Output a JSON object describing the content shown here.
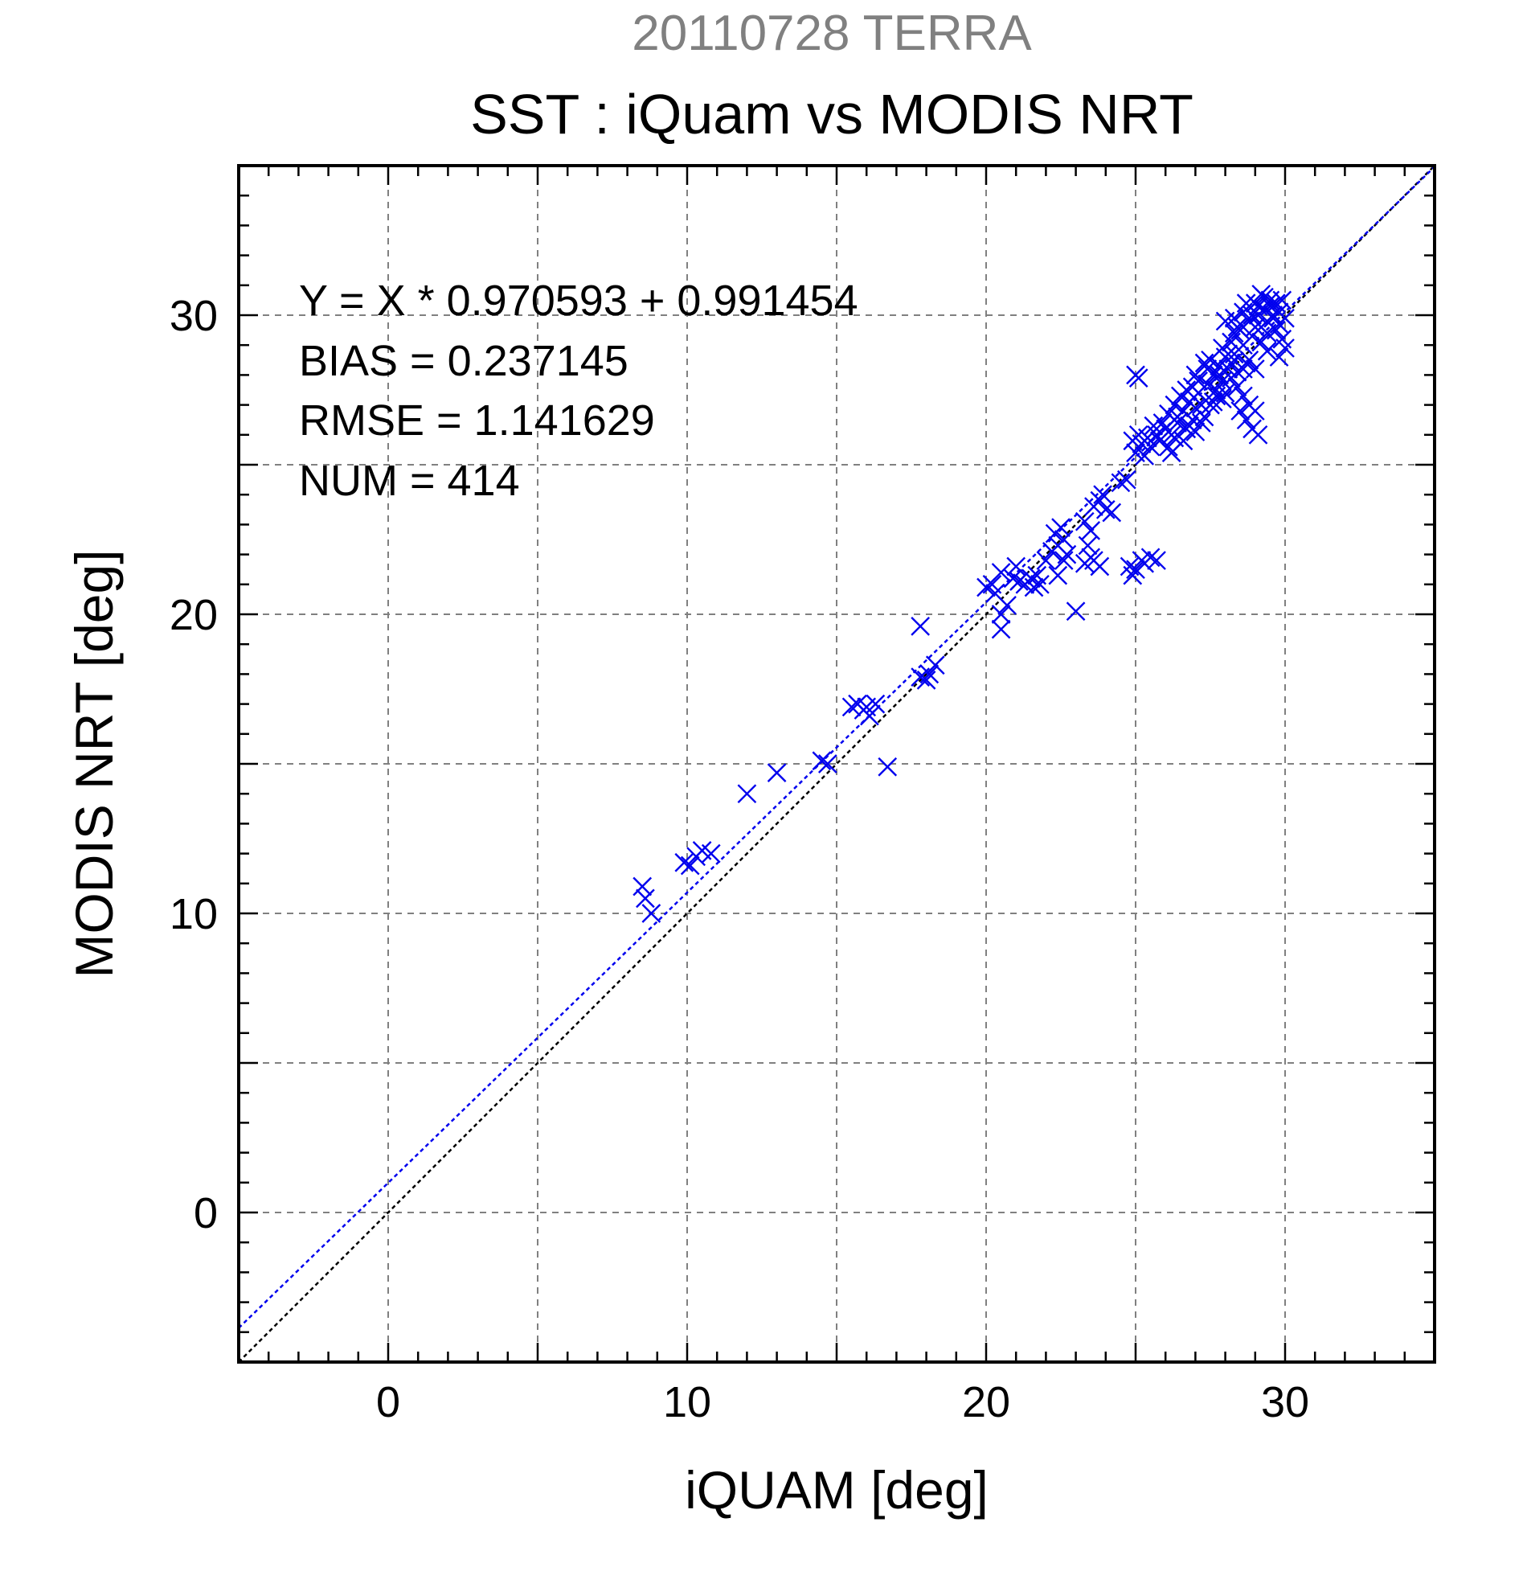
{
  "chart_data": {
    "type": "scatter",
    "supertitle": "20110728 TERRA",
    "title": "SST : iQuam vs MODIS NRT",
    "xlabel": "iQUAM [deg]",
    "ylabel": "MODIS NRT [deg]",
    "xlim": [
      -5,
      35
    ],
    "ylim": [
      -5,
      35
    ],
    "xticks": [
      0,
      10,
      20,
      30
    ],
    "yticks": [
      0,
      10,
      20,
      30
    ],
    "grid": true,
    "stats": [
      "Y = X * 0.970593 + 0.991454",
      "BIAS = 0.237145",
      "RMSE = 1.141629",
      "NUM = 414"
    ],
    "fit": {
      "slope": 0.970593,
      "intercept": 0.991454
    },
    "colors": {
      "points": "#0000ee",
      "fit_line": "#0000ee",
      "one_to_one_line": "#000000",
      "supertitle": "#808080",
      "grid": "#808080"
    },
    "series": [
      {
        "marker": "x",
        "points": [
          [
            8.5,
            10.9
          ],
          [
            8.6,
            10.5
          ],
          [
            8.8,
            10.0
          ],
          [
            9.9,
            11.7
          ],
          [
            10.1,
            11.6
          ],
          [
            10.3,
            11.9
          ],
          [
            10.5,
            12.1
          ],
          [
            10.8,
            12.0
          ],
          [
            12.0,
            14.0
          ],
          [
            13.0,
            14.7
          ],
          [
            14.5,
            15.1
          ],
          [
            14.7,
            15.0
          ],
          [
            15.5,
            16.9
          ],
          [
            15.7,
            17.0
          ],
          [
            15.9,
            16.8
          ],
          [
            16.0,
            16.9
          ],
          [
            16.1,
            16.6
          ],
          [
            16.3,
            17.0
          ],
          [
            16.7,
            14.9
          ],
          [
            17.8,
            19.6
          ],
          [
            17.8,
            17.9
          ],
          [
            18.0,
            17.8
          ],
          [
            18.1,
            18.0
          ],
          [
            18.3,
            18.3
          ],
          [
            20.0,
            20.9
          ],
          [
            20.2,
            21.0
          ],
          [
            20.3,
            20.7
          ],
          [
            20.5,
            21.4
          ],
          [
            20.5,
            20.0
          ],
          [
            20.5,
            19.5
          ],
          [
            20.7,
            20.3
          ],
          [
            20.9,
            21.2
          ],
          [
            21.0,
            21.6
          ],
          [
            21.1,
            21.1
          ],
          [
            21.3,
            21.0
          ],
          [
            21.5,
            21.2
          ],
          [
            21.6,
            20.9
          ],
          [
            21.7,
            21.3
          ],
          [
            21.8,
            21.0
          ],
          [
            22.0,
            21.8
          ],
          [
            22.2,
            22.1
          ],
          [
            22.3,
            22.7
          ],
          [
            22.4,
            22.3
          ],
          [
            22.5,
            22.9
          ],
          [
            22.6,
            22.5
          ],
          [
            22.4,
            21.3
          ],
          [
            22.6,
            21.8
          ],
          [
            22.7,
            22.0
          ],
          [
            23.0,
            20.1
          ],
          [
            23.3,
            21.7
          ],
          [
            23.4,
            22.3
          ],
          [
            23.5,
            21.9
          ],
          [
            23.6,
            21.8
          ],
          [
            23.8,
            21.6
          ],
          [
            23.3,
            23.1
          ],
          [
            23.5,
            22.8
          ],
          [
            23.6,
            23.6
          ],
          [
            23.8,
            23.8
          ],
          [
            23.9,
            24.0
          ],
          [
            24.0,
            23.5
          ],
          [
            24.2,
            23.4
          ],
          [
            24.5,
            24.4
          ],
          [
            24.7,
            24.5
          ],
          [
            24.8,
            21.6
          ],
          [
            24.9,
            21.3
          ],
          [
            25.0,
            21.5
          ],
          [
            25.2,
            21.8
          ],
          [
            25.3,
            21.7
          ],
          [
            25.5,
            21.9
          ],
          [
            25.7,
            21.8
          ],
          [
            25.0,
            28.0
          ],
          [
            25.1,
            27.9
          ],
          [
            24.9,
            25.8
          ],
          [
            25.0,
            25.4
          ],
          [
            25.1,
            26.0
          ],
          [
            25.2,
            25.7
          ],
          [
            25.3,
            25.3
          ],
          [
            25.5,
            25.6
          ],
          [
            25.7,
            26.0
          ],
          [
            25.8,
            25.8
          ],
          [
            26.0,
            26.2
          ],
          [
            26.1,
            25.6
          ],
          [
            26.2,
            25.4
          ],
          [
            26.3,
            25.9
          ],
          [
            26.1,
            26.7
          ],
          [
            26.3,
            27.0
          ],
          [
            26.4,
            26.4
          ],
          [
            26.5,
            27.3
          ],
          [
            26.6,
            26.8
          ],
          [
            26.7,
            27.5
          ],
          [
            26.8,
            27.1
          ],
          [
            26.9,
            26.5
          ],
          [
            27.0,
            26.9
          ],
          [
            27.1,
            27.4
          ],
          [
            27.2,
            27.0
          ],
          [
            27.3,
            26.6
          ],
          [
            27.4,
            27.7
          ],
          [
            27.5,
            28.5
          ],
          [
            27.6,
            28.0
          ],
          [
            27.7,
            27.5
          ],
          [
            27.8,
            28.3
          ],
          [
            27.9,
            27.8
          ],
          [
            27.9,
            28.9
          ],
          [
            28.0,
            28.6
          ],
          [
            28.1,
            28.2
          ],
          [
            28.2,
            29.1
          ],
          [
            28.3,
            28.7
          ],
          [
            28.4,
            28.1
          ],
          [
            28.5,
            29.5
          ],
          [
            28.6,
            29.0
          ],
          [
            28.7,
            28.4
          ],
          [
            28.8,
            29.8
          ],
          [
            28.9,
            29.3
          ],
          [
            29.0,
            30.4
          ],
          [
            29.0,
            29.6
          ],
          [
            29.1,
            30.0
          ],
          [
            29.2,
            30.7
          ],
          [
            29.3,
            30.2
          ],
          [
            29.4,
            29.8
          ],
          [
            29.5,
            30.3
          ],
          [
            29.6,
            29.9
          ],
          [
            29.7,
            29.5
          ],
          [
            29.8,
            30.1
          ],
          [
            29.9,
            29.2
          ],
          [
            30.0,
            28.9
          ],
          [
            29.8,
            28.6
          ],
          [
            28.0,
            29.8
          ],
          [
            28.4,
            29.6
          ],
          [
            28.6,
            30.1
          ],
          [
            29.0,
            28.2
          ],
          [
            29.2,
            29.1
          ],
          [
            29.4,
            28.8
          ],
          [
            28.2,
            27.9
          ],
          [
            28.4,
            27.6
          ],
          [
            28.6,
            27.3
          ],
          [
            28.8,
            27.0
          ],
          [
            29.0,
            26.8
          ],
          [
            28.7,
            26.5
          ],
          [
            28.9,
            26.2
          ],
          [
            29.1,
            26.0
          ],
          [
            28.5,
            26.8
          ],
          [
            27.9,
            27.2
          ],
          [
            27.5,
            27.0
          ],
          [
            27.0,
            26.1
          ],
          [
            26.6,
            25.8
          ],
          [
            26.8,
            26.3
          ],
          [
            27.2,
            26.4
          ],
          [
            27.7,
            27.3
          ],
          [
            28.1,
            28.7
          ],
          [
            28.3,
            29.4
          ],
          [
            29.3,
            30.6
          ],
          [
            29.5,
            30.5
          ],
          [
            29.1,
            30.3
          ],
          [
            28.9,
            30.0
          ],
          [
            28.7,
            30.4
          ],
          [
            29.6,
            30.0
          ],
          [
            29.8,
            29.7
          ],
          [
            30.0,
            29.9
          ],
          [
            29.9,
            30.5
          ],
          [
            29.4,
            29.4
          ],
          [
            28.8,
            28.5
          ],
          [
            28.2,
            28.4
          ],
          [
            27.8,
            28.0
          ],
          [
            27.4,
            28.2
          ],
          [
            27.1,
            27.8
          ],
          [
            26.9,
            27.6
          ],
          [
            26.2,
            26.0
          ],
          [
            25.9,
            26.4
          ],
          [
            25.6,
            26.3
          ],
          [
            25.4,
            25.9
          ],
          [
            26.4,
            26.6
          ],
          [
            26.7,
            26.2
          ],
          [
            27.6,
            27.1
          ],
          [
            28.0,
            27.4
          ],
          [
            28.6,
            28.2
          ],
          [
            29.2,
            29.6
          ],
          [
            29.7,
            30.4
          ],
          [
            28.3,
            29.9
          ],
          [
            27.3,
            28.4
          ],
          [
            27.0,
            28.0
          ]
        ]
      }
    ]
  }
}
